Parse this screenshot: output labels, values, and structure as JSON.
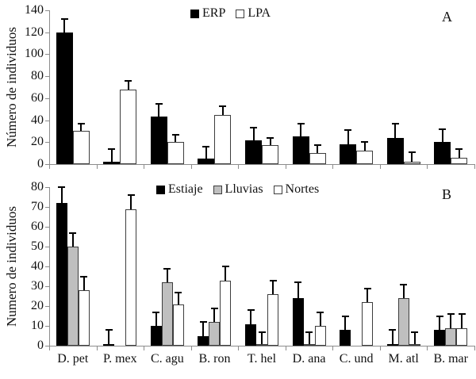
{
  "figure": {
    "background": "#ffffff",
    "description": "Two stacked bar-chart panels sharing one category axis"
  },
  "colors": {
    "black_fill": "#000000",
    "gray_fill": "#bfbfbf",
    "white_fill": "#ffffff",
    "bar_border": "#3d3d3d",
    "axis": "#8c8c8c",
    "error_bar": "#000000",
    "text": "#111111"
  },
  "chart_data": [
    {
      "type": "bar",
      "panel_letter": "A",
      "title": "",
      "xlabel": "",
      "ylabel": "Número de individuos",
      "ylim": [
        0,
        140
      ],
      "ytick_step": 20,
      "grid": false,
      "legend_position": "top-inside",
      "categories": [
        "D. pet",
        "P. mex",
        "C. agu",
        "B. ron",
        "T. hel",
        "D. ana",
        "C. und",
        "M. atl",
        "B. mar"
      ],
      "series": [
        {
          "name": "ERP",
          "fill": "#000000",
          "values": [
            120,
            2,
            43,
            5,
            22,
            25,
            18,
            24,
            20
          ],
          "errors": [
            12,
            12,
            12,
            11,
            11,
            12,
            13,
            13,
            12
          ]
        },
        {
          "name": "LPA",
          "fill": "#ffffff",
          "values": [
            30,
            68,
            20,
            45,
            17,
            10,
            12,
            2,
            6
          ],
          "errors": [
            7,
            8,
            7,
            8,
            7,
            7,
            8,
            9,
            8
          ]
        }
      ]
    },
    {
      "type": "bar",
      "panel_letter": "B",
      "title": "",
      "xlabel": "",
      "ylabel": "Numero de individuos",
      "ylim": [
        0,
        80
      ],
      "ytick_step": 10,
      "grid": false,
      "legend_position": "top-inside",
      "categories": [
        "D. pet",
        "P. mex",
        "C. agu",
        "B. ron",
        "T. hel",
        "D. ana",
        "C. und",
        "M. atl",
        "B. mar"
      ],
      "series": [
        {
          "name": "Estiaje",
          "fill": "#000000",
          "values": [
            72,
            1,
            10,
            5,
            11,
            24,
            8,
            1,
            8
          ],
          "errors": [
            8,
            7,
            7,
            7,
            7,
            8,
            7,
            7,
            7
          ]
        },
        {
          "name": "Lluvias",
          "fill": "#bfbfbf",
          "values": [
            50,
            0,
            32,
            12,
            1,
            1,
            0,
            24,
            9
          ],
          "errors": [
            7,
            0,
            7,
            7,
            6,
            6,
            0,
            7,
            7
          ]
        },
        {
          "name": "Nortes",
          "fill": "#ffffff",
          "values": [
            28,
            69,
            21,
            33,
            26,
            10,
            22,
            1,
            9
          ],
          "errors": [
            7,
            7,
            6,
            7,
            7,
            7,
            7,
            6,
            7
          ]
        }
      ]
    }
  ]
}
